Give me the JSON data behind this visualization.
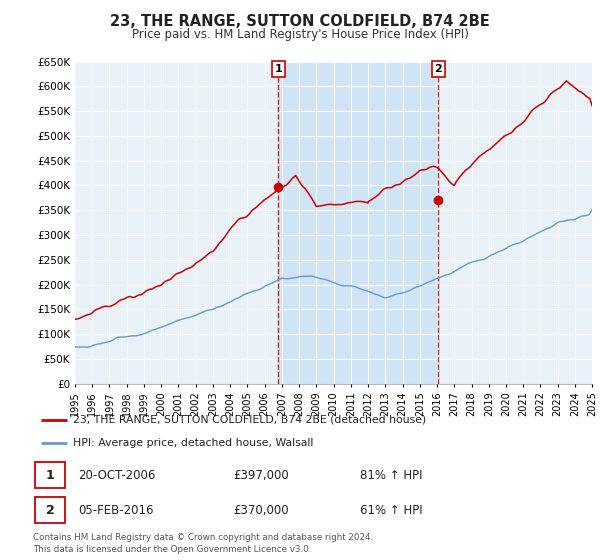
{
  "title": "23, THE RANGE, SUTTON COLDFIELD, B74 2BE",
  "subtitle": "Price paid vs. HM Land Registry's House Price Index (HPI)",
  "red_label": "23, THE RANGE, SUTTON COLDFIELD, B74 2BE (detached house)",
  "blue_label": "HPI: Average price, detached house, Walsall",
  "annotation1_date": "20-OCT-2006",
  "annotation1_price": "£397,000",
  "annotation1_hpi": "81% ↑ HPI",
  "annotation2_date": "05-FEB-2016",
  "annotation2_price": "£370,000",
  "annotation2_hpi": "61% ↑ HPI",
  "vline1_x": 2006.8,
  "vline2_x": 2016.08,
  "point1_x": 2006.8,
  "point1_y": 397000,
  "point2_x": 2016.08,
  "point2_y": 370000,
  "xmin": 1995,
  "xmax": 2025,
  "ymin": 0,
  "ymax": 650000,
  "yticks": [
    0,
    50000,
    100000,
    150000,
    200000,
    250000,
    300000,
    350000,
    400000,
    450000,
    500000,
    550000,
    600000,
    650000
  ],
  "ytick_labels": [
    "£0",
    "£50K",
    "£100K",
    "£150K",
    "£200K",
    "£250K",
    "£300K",
    "£350K",
    "£400K",
    "£450K",
    "£500K",
    "£550K",
    "£600K",
    "£650K"
  ],
  "red_color": "#cc0000",
  "blue_color": "#6699cc",
  "vline_color": "#cc0000",
  "bg_color": "#e8f0f8",
  "plot_bg": "#ffffff",
  "span_color": "#d0e4f5",
  "grid_color": "#ffffff",
  "footer": "Contains HM Land Registry data © Crown copyright and database right 2024.\nThis data is licensed under the Open Government Licence v3.0.",
  "xtick_years": [
    1995,
    1996,
    1997,
    1998,
    1999,
    2000,
    2001,
    2002,
    2003,
    2004,
    2005,
    2006,
    2007,
    2008,
    2009,
    2010,
    2011,
    2012,
    2013,
    2014,
    2015,
    2016,
    2017,
    2018,
    2019,
    2020,
    2021,
    2022,
    2023,
    2024,
    2025
  ]
}
